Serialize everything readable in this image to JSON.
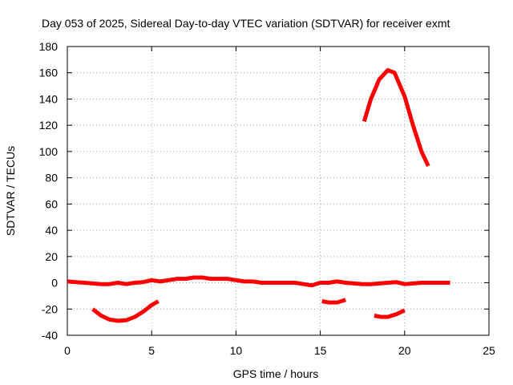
{
  "chart_data": {
    "type": "line",
    "title": "Day 053 of 2025, Sidereal Day-to-day VTEC variation (SDTVAR) for receiver exmt",
    "xlabel": "GPS time / hours",
    "ylabel": "SDTVAR / TECUs",
    "xlim": [
      0,
      25
    ],
    "ylim": [
      -40,
      180
    ],
    "xticks": [
      0,
      5,
      10,
      15,
      20,
      25
    ],
    "yticks": [
      -40,
      -20,
      0,
      20,
      40,
      60,
      80,
      100,
      120,
      140,
      160,
      180
    ],
    "grid": true,
    "color": "#ff0000",
    "series": [
      {
        "name": "baseline",
        "points": [
          [
            0,
            1
          ],
          [
            0.5,
            0.5
          ],
          [
            1,
            0
          ],
          [
            1.5,
            -0.5
          ],
          [
            2,
            -1
          ],
          [
            2.5,
            -1
          ],
          [
            3,
            0
          ],
          [
            3.5,
            -1
          ],
          [
            4,
            0
          ],
          [
            4.5,
            0.5
          ],
          [
            5,
            2
          ],
          [
            5.5,
            1
          ],
          [
            6,
            2
          ],
          [
            6.5,
            3
          ],
          [
            7,
            3
          ],
          [
            7.5,
            4
          ],
          [
            8,
            4
          ],
          [
            8.5,
            3
          ],
          [
            9,
            3
          ],
          [
            9.5,
            3
          ],
          [
            10,
            2
          ],
          [
            10.5,
            1
          ],
          [
            11,
            1
          ],
          [
            11.5,
            0
          ],
          [
            12,
            0
          ],
          [
            12.5,
            0
          ],
          [
            13,
            0
          ],
          [
            13.5,
            0
          ],
          [
            14,
            -1
          ],
          [
            14.5,
            -2
          ],
          [
            15,
            0
          ],
          [
            15.5,
            0
          ],
          [
            16,
            1
          ],
          [
            16.5,
            0
          ],
          [
            17,
            -0.5
          ],
          [
            17.5,
            -1
          ],
          [
            18,
            -1
          ],
          [
            18.5,
            -0.5
          ],
          [
            19,
            0
          ],
          [
            19.5,
            0.5
          ],
          [
            20,
            -1
          ],
          [
            20.5,
            -0.5
          ],
          [
            21,
            0
          ],
          [
            21.5,
            0
          ],
          [
            22,
            0
          ],
          [
            22.7,
            0
          ]
        ]
      },
      {
        "name": "arc-1",
        "points": [
          [
            1.5,
            -20
          ],
          [
            2,
            -25
          ],
          [
            2.5,
            -28
          ],
          [
            3,
            -29
          ],
          [
            3.5,
            -28.5
          ],
          [
            4,
            -26
          ],
          [
            4.5,
            -22
          ],
          [
            5,
            -17
          ],
          [
            5.4,
            -14
          ]
        ]
      },
      {
        "name": "arc-2",
        "points": [
          [
            15.1,
            -14
          ],
          [
            15.5,
            -15
          ],
          [
            16,
            -15
          ],
          [
            16.5,
            -13
          ]
        ]
      },
      {
        "name": "arc-3",
        "points": [
          [
            18.2,
            -25
          ],
          [
            18.6,
            -26
          ],
          [
            19,
            -26
          ],
          [
            19.5,
            -24
          ],
          [
            20,
            -21
          ]
        ]
      },
      {
        "name": "arc-4",
        "points": [
          [
            17.6,
            123
          ],
          [
            18,
            140
          ],
          [
            18.5,
            155
          ],
          [
            19,
            162
          ],
          [
            19.4,
            160
          ],
          [
            20,
            142
          ],
          [
            20.5,
            120
          ],
          [
            21,
            100
          ],
          [
            21.4,
            89
          ]
        ]
      }
    ]
  }
}
